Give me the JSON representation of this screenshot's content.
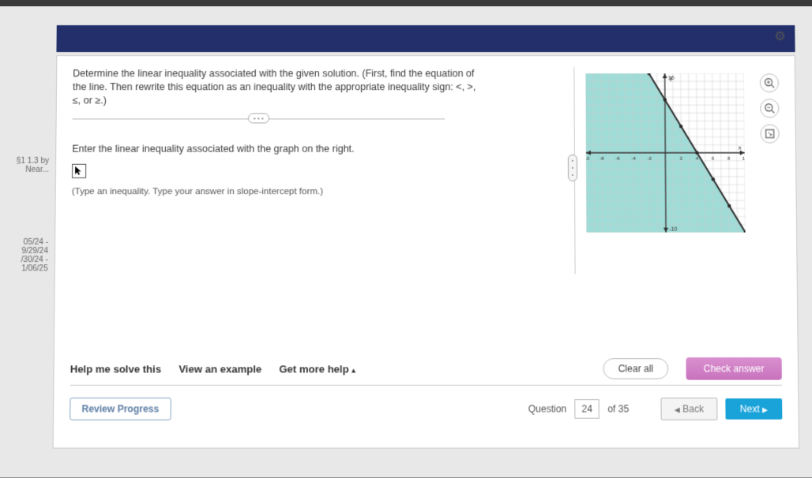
{
  "sidebar": {
    "item1": "§1 1.3 by Near...",
    "item2_a": "05/24 - 9/29/24",
    "item2_b": "/30/24 - 1/06/25"
  },
  "question": {
    "instruction": "Determine the linear inequality associated with the given solution. (First, find the equation of the line. Then rewrite this equation as an inequality with the appropriate inequality sign: <, >, ≤, or ≥.)",
    "collapse_pill": "• • •",
    "prompt": "Enter the linear inequality associated with the graph on the right.",
    "hint": "(Type an inequality. Type your answer in slope-intercept form.)"
  },
  "graph": {
    "xmin": -10,
    "xmax": 10,
    "ymin": -10,
    "ymax": 10,
    "grid_step": 1,
    "axis_color": "#333333",
    "grid_color": "#c8c8c8",
    "shade_color": "#8fd6d0",
    "line_color": "#2a2a2a",
    "line_width": 2,
    "line_points": [
      [
        -2,
        10
      ],
      [
        10,
        -10
      ]
    ],
    "shade_side": "left-below",
    "points_on_line": [
      [
        -2,
        10
      ],
      [
        0,
        6.67
      ],
      [
        2,
        3.33
      ],
      [
        4,
        0
      ],
      [
        6,
        -3.33
      ],
      [
        8,
        -6.67
      ],
      [
        10,
        -10
      ]
    ],
    "x_label": "x",
    "y_label": "y",
    "tick_labels_x": [
      -10,
      -8,
      -6,
      -4,
      -2,
      2,
      4,
      6,
      8,
      10
    ],
    "tick_labels_y": [
      -10,
      10
    ],
    "tools": {
      "zoom_in": "+",
      "zoom_out": "−",
      "fullscreen": "⛶"
    }
  },
  "help": {
    "solve": "Help me solve this",
    "example": "View an example",
    "more": "Get more help",
    "clear": "Clear all",
    "check": "Check answer"
  },
  "nav": {
    "review": "Review Progress",
    "question_label": "Question",
    "current": "24",
    "total_label": "of 35",
    "back": "Back",
    "next": "Next"
  },
  "icons": {
    "gear": "⚙"
  }
}
